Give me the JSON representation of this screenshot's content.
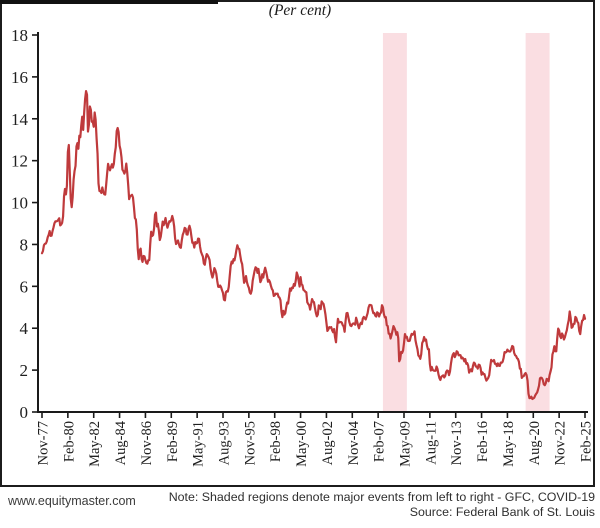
{
  "page": {
    "title": "(Per cent)",
    "watermark": "www.equitymaster.com",
    "note": "Note: Shaded regions denote major events from left to right - GFC, COVID-19",
    "source": "Source: Federal Bank of St. Louis"
  },
  "colors": {
    "line": "#bf3a3c",
    "band": "#fadee2",
    "axis": "#1a1a1a",
    "tick_text": "#1f1f1f"
  },
  "chart_data": {
    "type": "line",
    "title": "(Per cent)",
    "ylabel": "Per cent",
    "ylim": [
      0,
      18
    ],
    "y_ticks": [
      0,
      2,
      4,
      6,
      8,
      10,
      12,
      14,
      16,
      18
    ],
    "x_tick_labels": [
      "Nov-77",
      "Feb-80",
      "May-82",
      "Aug-84",
      "Nov-86",
      "Feb-89",
      "May-91",
      "Aug-93",
      "Nov-95",
      "Feb-98",
      "May-00",
      "Aug-02",
      "Nov-04",
      "Feb-07",
      "May-09",
      "Aug-11",
      "Nov-13",
      "Feb-16",
      "May-18",
      "Aug-20",
      "Nov-22",
      "Feb-25"
    ],
    "months_per_tick": 27,
    "frequency": "monthly",
    "x_start": "Nov-1977",
    "x_end": "Feb-2025",
    "grid": false,
    "legend": "none",
    "shaded_regions": [
      {
        "label": "GFC",
        "start_index": 356,
        "end_index": 381
      },
      {
        "label": "COVID-19",
        "start_index": 505,
        "end_index": 530
      }
    ],
    "values": [
      7.58,
      7.69,
      7.96,
      8.03,
      8.04,
      8.15,
      8.35,
      8.46,
      8.64,
      8.41,
      8.42,
      8.64,
      8.81,
      9.01,
      9.1,
      9.1,
      9.12,
      9.18,
      9.25,
      8.91,
      8.95,
      9.03,
      9.33,
      10.3,
      10.65,
      10.39,
      10.8,
      12.41,
      12.75,
      11.47,
      10.18,
      9.78,
      10.25,
      11.1,
      11.51,
      11.75,
      12.68,
      12.84,
      12.57,
      13.19,
      13.12,
      13.68,
      14.1,
      13.47,
      14.28,
      14.94,
      15.32,
      15.15,
      13.39,
      13.72,
      14.59,
      14.43,
      13.86,
      13.87,
      13.62,
      14.3,
      13.95,
      13.06,
      12.34,
      10.91,
      10.55,
      10.54,
      10.46,
      10.72,
      10.51,
      10.4,
      10.38,
      10.85,
      11.38,
      11.85,
      11.65,
      11.54,
      11.69,
      11.83,
      11.67,
      11.84,
      12.32,
      12.63,
      13.41,
      13.56,
      13.36,
      12.72,
      12.52,
      12.16,
      11.57,
      11.5,
      11.38,
      11.51,
      11.86,
      11.43,
      10.85,
      10.16,
      10.31,
      10.33,
      10.37,
      10.24,
      9.78,
      9.26,
      9.19,
      8.7,
      7.78,
      7.3,
      7.71,
      7.8,
      7.3,
      7.17,
      7.45,
      7.43,
      7.25,
      7.11,
      7.08,
      7.25,
      7.25,
      8.02,
      8.61,
      8.4,
      8.45,
      8.76,
      9.42,
      9.52,
      8.86,
      8.99,
      8.67,
      8.21,
      8.37,
      8.72,
      9.09,
      8.92,
      9.06,
      9.26,
      8.98,
      8.8,
      8.96,
      9.11,
      9.09,
      9.17,
      9.36,
      9.18,
      8.86,
      8.28,
      8.02,
      8.11,
      8.19,
      8.01,
      7.87,
      7.84,
      8.21,
      8.47,
      8.59,
      8.79,
      8.76,
      8.48,
      8.47,
      8.75,
      8.89,
      8.72,
      8.39,
      8.08,
      8.09,
      7.85,
      8.11,
      8.04,
      8.07,
      8.28,
      8.27,
      7.9,
      7.65,
      7.53,
      7.42,
      7.09,
      7.03,
      7.34,
      7.54,
      7.48,
      7.39,
      7.26,
      6.84,
      6.59,
      6.42,
      6.59,
      6.87,
      6.77,
      6.6,
      6.26,
      5.98,
      5.97,
      6.04,
      5.96,
      5.81,
      5.68,
      5.36,
      5.33,
      5.72,
      5.77,
      5.75,
      5.97,
      6.48,
      6.97,
      7.18,
      7.1,
      7.3,
      7.24,
      7.46,
      7.74,
      7.96,
      7.81,
      7.78,
      7.47,
      7.2,
      7.06,
      6.63,
      6.17,
      6.28,
      6.49,
      6.2,
      6.04,
      5.93,
      5.71,
      5.65,
      5.81,
      6.27,
      6.51,
      6.74,
      6.91,
      6.87,
      6.64,
      6.83,
      6.53,
      6.2,
      6.3,
      6.58,
      6.42,
      6.69,
      6.89,
      6.71,
      6.49,
      6.22,
      6.3,
      6.21,
      6.03,
      5.88,
      5.81,
      5.54,
      5.57,
      5.65,
      5.64,
      5.65,
      5.5,
      5.46,
      5.34,
      4.81,
      4.53,
      4.83,
      4.65,
      4.72,
      5.0,
      5.23,
      5.18,
      5.54,
      5.9,
      5.79,
      5.94,
      5.92,
      6.11,
      6.03,
      6.28,
      6.66,
      6.52,
      6.26,
      5.99,
      6.44,
      6.1,
      6.05,
      5.83,
      5.8,
      5.74,
      5.72,
      5.24,
      5.16,
      5.1,
      4.89,
      5.14,
      5.39,
      5.28,
      5.24,
      4.97,
      4.73,
      4.57,
      4.65,
      5.09,
      5.04,
      4.91,
      5.28,
      5.21,
      5.16,
      4.93,
      4.65,
      4.26,
      3.87,
      3.94,
      4.05,
      4.03,
      4.05,
      3.9,
      3.81,
      3.96,
      3.57,
      3.33,
      3.98,
      4.45,
      4.27,
      4.29,
      4.3,
      4.27,
      4.15,
      4.08,
      3.83,
      4.35,
      4.72,
      4.73,
      4.5,
      4.28,
      4.13,
      4.1,
      4.19,
      4.23,
      4.22,
      4.17,
      4.5,
      4.34,
      4.14,
      4.0,
      4.18,
      4.26,
      4.2,
      4.46,
      4.54,
      4.47,
      4.42,
      4.57,
      4.72,
      4.99,
      5.11,
      5.11,
      5.09,
      4.88,
      4.72,
      4.73,
      4.6,
      4.56,
      4.76,
      4.72,
      4.56,
      4.69,
      4.75,
      5.1,
      5.0,
      4.67,
      4.52,
      4.53,
      4.15,
      4.1,
      3.74,
      3.74,
      3.51,
      3.68,
      3.88,
      4.1,
      4.01,
      3.89,
      3.69,
      3.81,
      3.53,
      2.42,
      2.52,
      2.87,
      2.82,
      2.93,
      3.29,
      3.72,
      3.56,
      3.59,
      3.4,
      3.39,
      3.4,
      3.59,
      3.73,
      3.69,
      3.73,
      3.85,
      3.42,
      3.2,
      3.01,
      2.7,
      2.65,
      2.54,
      2.76,
      3.29,
      3.39,
      3.58,
      3.41,
      3.46,
      3.17,
      3.0,
      3.0,
      2.3,
      1.98,
      2.15,
      2.01,
      1.98,
      1.97,
      1.97,
      2.17,
      2.05,
      1.8,
      1.62,
      1.53,
      1.68,
      1.72,
      1.75,
      1.65,
      1.72,
      1.91,
      1.98,
      1.96,
      1.76,
      1.93,
      2.3,
      2.58,
      2.74,
      2.81,
      2.62,
      2.72,
      2.9,
      2.86,
      2.71,
      2.72,
      2.71,
      2.56,
      2.6,
      2.54,
      2.42,
      2.53,
      2.3,
      2.33,
      2.21,
      1.88,
      1.98,
      2.04,
      1.94,
      2.2,
      2.36,
      2.32,
      2.17,
      2.17,
      2.07,
      2.26,
      2.24,
      2.09,
      1.78,
      1.89,
      1.81,
      1.81,
      1.64,
      1.5,
      1.56,
      1.63,
      1.76,
      2.14,
      2.49,
      2.43,
      2.42,
      2.48,
      2.3,
      2.3,
      2.19,
      2.32,
      2.21,
      2.2,
      2.36,
      2.35,
      2.4,
      2.58,
      2.86,
      2.84,
      2.87,
      2.98,
      2.91,
      2.89,
      2.89,
      3.0,
      3.15,
      3.12,
      2.83,
      2.71,
      2.68,
      2.57,
      2.53,
      2.4,
      2.07,
      2.06,
      1.63,
      1.7,
      1.71,
      1.81,
      1.86,
      1.76,
      1.5,
      0.87,
      0.66,
      0.67,
      0.73,
      0.62,
      0.65,
      0.68,
      0.79,
      0.87,
      0.93,
      1.08,
      1.26,
      1.61,
      1.64,
      1.62,
      1.52,
      1.32,
      1.28,
      1.37,
      1.58,
      1.56,
      1.47,
      1.76,
      1.93,
      2.13,
      2.75,
      2.9,
      3.14,
      2.9,
      2.9,
      3.52,
      3.98,
      3.89,
      3.62,
      3.53,
      3.75,
      3.66,
      3.46,
      3.57,
      3.75,
      3.9,
      4.17,
      4.38,
      4.8,
      4.5,
      4.02,
      4.06,
      4.21,
      4.21,
      4.54,
      4.48,
      4.31,
      4.25,
      3.87,
      3.72,
      4.1,
      4.36,
      4.39,
      4.63,
      4.45
    ]
  }
}
